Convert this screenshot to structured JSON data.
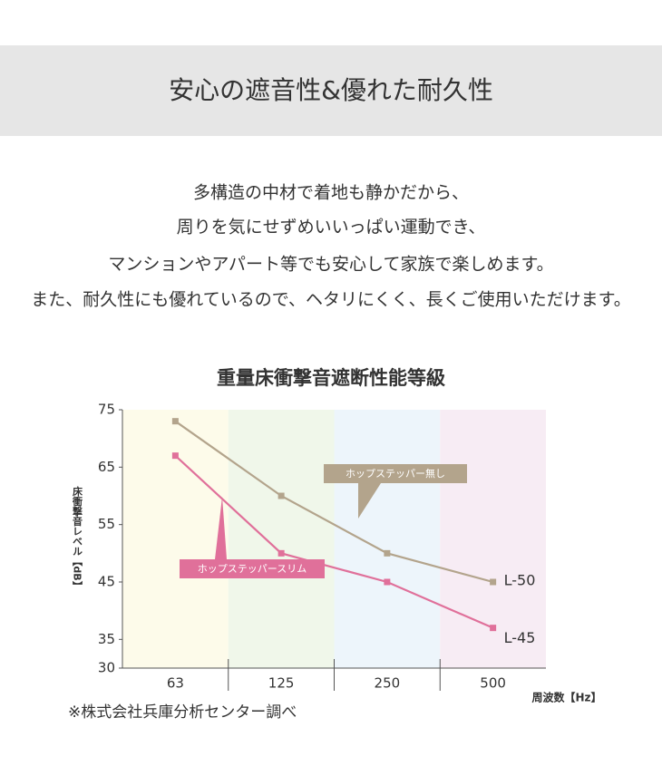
{
  "header": {
    "title": "安心の遮音性&優れた耐久性"
  },
  "body": {
    "lines": [
      "多構造の中材で着地も静かだから、",
      "周りを気にせずめいいっぱい運動でき、",
      "マンションやアパート等でも安心して家族で楽しめます。",
      "また、耐久性にも優れているので、ヘタリにくく、長くご使用いただけます。"
    ]
  },
  "chart_data": {
    "type": "line",
    "title": "重量床衝撃音遮断性能等級",
    "y_label": "床衝撃音レベル【dB】",
    "x_label": "周波数【Hz】",
    "categories": [
      "63",
      "125",
      "250",
      "500"
    ],
    "band_colors": [
      "#fdfbea",
      "#f0f7ea",
      "#edf5fb",
      "#f7ecf4"
    ],
    "series": [
      {
        "name": "ホップステッパー無し",
        "end_label": "L-50",
        "color": "#b3a48c",
        "label_color": "#333333",
        "values": [
          73,
          60,
          50,
          45
        ]
      },
      {
        "name": "ホップステッパースリム",
        "end_label": "L-45",
        "color": "#e0709a",
        "label_color": "#e0709a",
        "values": [
          67,
          50,
          45,
          37
        ]
      }
    ],
    "ylim": [
      30,
      75
    ],
    "yticks": [
      30,
      35,
      45,
      55,
      65,
      75
    ],
    "grid": false
  },
  "footnote": "※株式会社兵庫分析センター調べ"
}
